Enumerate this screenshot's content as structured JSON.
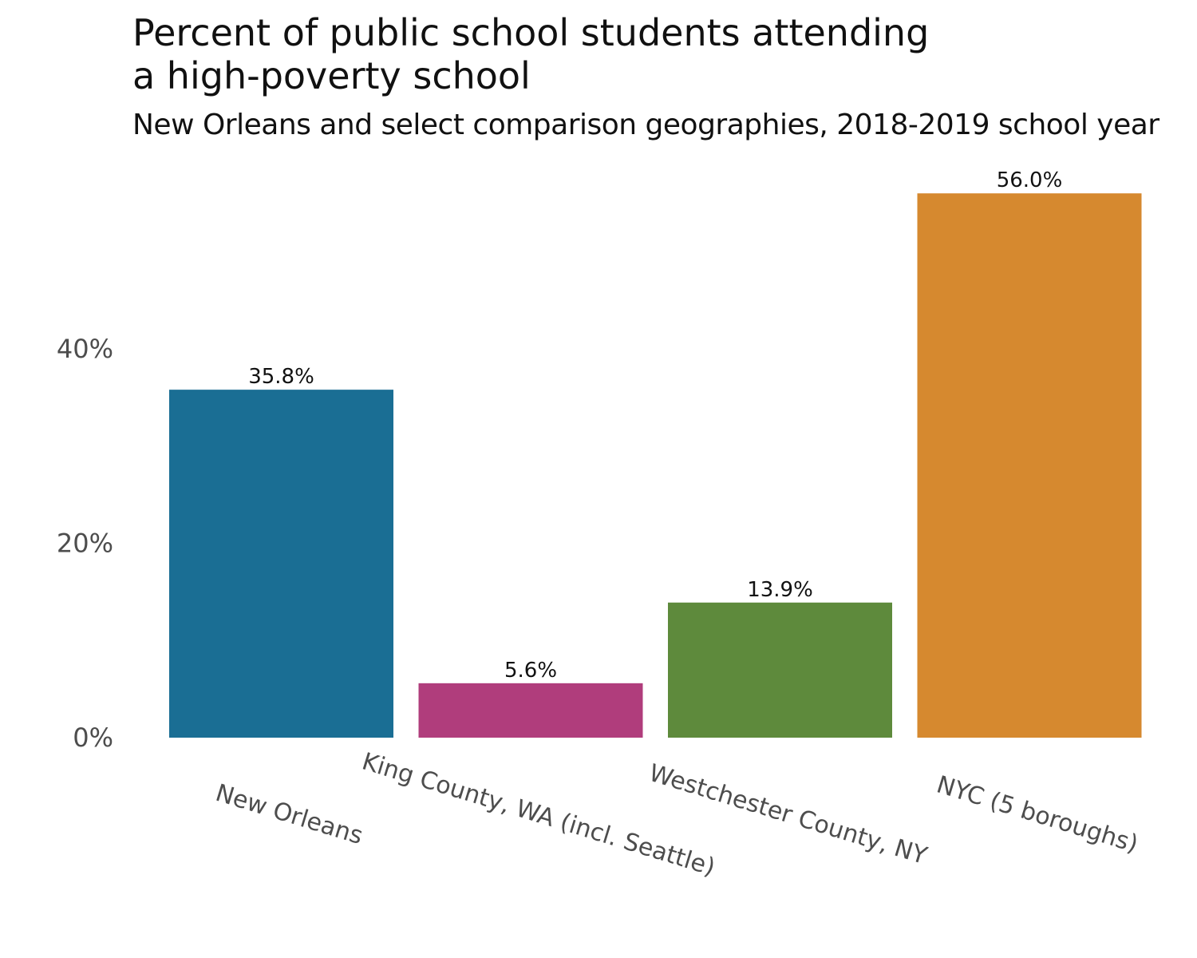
{
  "chart_data": {
    "type": "bar",
    "title": "Percent of public school students attending a high-poverty school",
    "title_lines": [
      "Percent of public school students attending",
      "a high-poverty school"
    ],
    "subtitle": "New Orleans and select comparison geographies, 2018-2019 school year",
    "xlabel": "",
    "ylabel": "",
    "ylim": [
      0,
      56
    ],
    "yticks": [
      0,
      20,
      40
    ],
    "ytick_labels": [
      "0%",
      "20%",
      "40%"
    ],
    "grid": false,
    "categories": [
      "New Orleans",
      "King County, WA (incl. Seattle)",
      "Westchester County, NY",
      "NYC (5 boroughs)"
    ],
    "values": [
      35.8,
      5.6,
      13.9,
      56.0
    ],
    "data_labels": [
      "35.8%",
      "5.6%",
      "13.9%",
      "56.0%"
    ],
    "colors": [
      "#1a6e94",
      "#b03d7c",
      "#5e8a3c",
      "#d6892f"
    ]
  }
}
